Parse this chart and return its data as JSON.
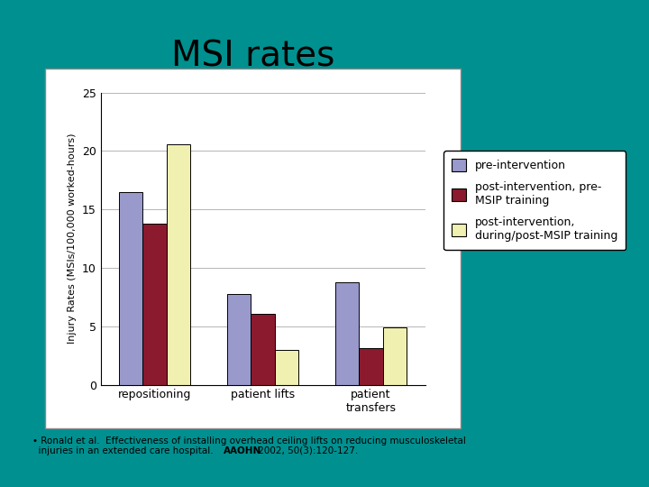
{
  "title": "MSI rates",
  "ylabel": "Injury Rates (MSIs/100,000 worked-hours)",
  "categories": [
    "repositioning",
    "patient lifts",
    "patient\ntransfers"
  ],
  "series": {
    "pre-intervention": [
      16.5,
      7.8,
      8.8
    ],
    "post-intervention, pre-\nMSIP training": [
      13.8,
      6.1,
      3.1
    ],
    "post-intervention,\nduring/post-MSIP training": [
      20.6,
      3.0,
      4.9
    ]
  },
  "colors": [
    "#9999cc",
    "#8b1a2e",
    "#f0f0b0"
  ],
  "legend_labels": [
    "pre-intervention",
    "post-intervention, pre-\nMSIP training",
    "post-intervention,\nduring/post-MSIP training"
  ],
  "ylim": [
    0,
    25
  ],
  "yticks": [
    0,
    5,
    10,
    15,
    20,
    25
  ],
  "background_outer": "#009090",
  "background_panel": "#ffffff",
  "title_fontsize": 28,
  "axis_label_fontsize": 8,
  "tick_fontsize": 9,
  "legend_fontsize": 9,
  "footnote_fontsize": 7.5,
  "bar_width": 0.22
}
